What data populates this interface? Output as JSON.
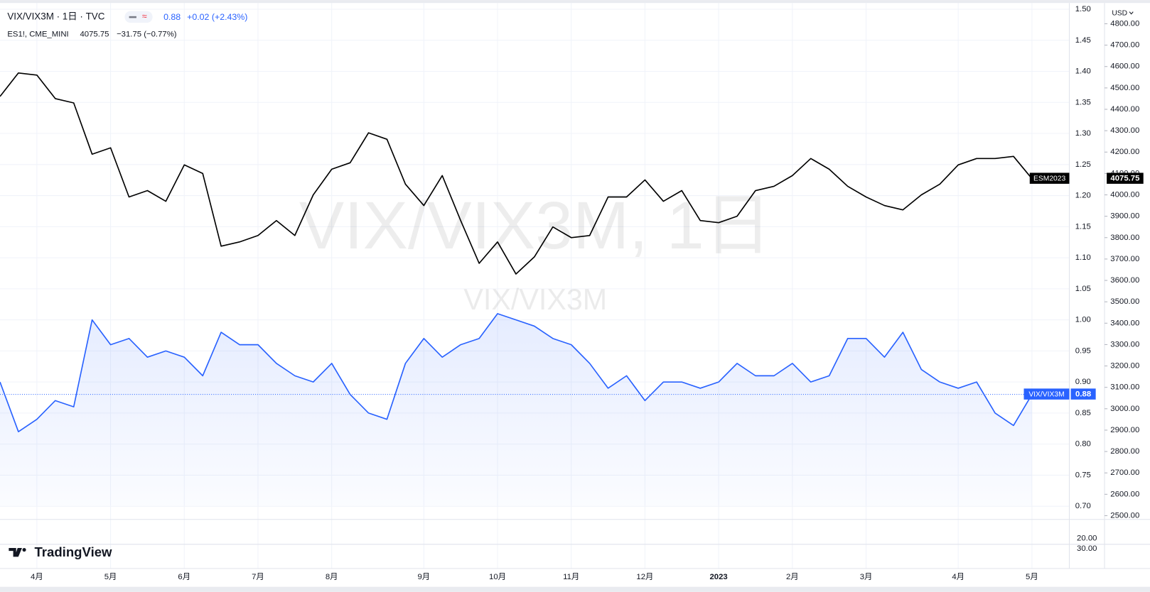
{
  "chart_data": {
    "type": "line",
    "title": "VIX/VIX3M · 1日 · TVC",
    "subtitle": "ES1!, CME_MINI",
    "header_changes": [
      "+0.02 (+2.43%)",
      "−31.75 (−0.77%)"
    ],
    "watermark": [
      "VIX/VIX3M, 1日",
      "VIX/VIX3M"
    ],
    "currency": "USD",
    "logo": "TradingView",
    "lower_pane_labels": [
      "20.00",
      "30.00"
    ],
    "categories": [
      null,
      null,
      "4月",
      null,
      null,
      null,
      "5月",
      null,
      null,
      null,
      "6月",
      null,
      null,
      null,
      "7月",
      null,
      null,
      null,
      "8月",
      null,
      null,
      null,
      null,
      "9月",
      null,
      null,
      null,
      "10月",
      null,
      null,
      null,
      "11月",
      null,
      null,
      null,
      "12月",
      null,
      null,
      null,
      "2023",
      null,
      null,
      null,
      "2月",
      null,
      null,
      null,
      "3月",
      null,
      null,
      null,
      null,
      "4月",
      null,
      null,
      null,
      "5月"
    ],
    "series": [
      {
        "name": "ESM2023",
        "color": "#000000",
        "axis": "y2",
        "values": [
          4460,
          4570,
          4560,
          4450,
          4430,
          4190,
          4220,
          3990,
          4020,
          3970,
          4140,
          4100,
          3760,
          3780,
          3810,
          3880,
          3810,
          4000,
          4120,
          4150,
          4290,
          4260,
          4050,
          3950,
          4090,
          3880,
          3680,
          3780,
          3630,
          3710,
          3850,
          3800,
          3810,
          3990,
          3990,
          4070,
          3970,
          4020,
          3880,
          3870,
          3900,
          4020,
          4040,
          4090,
          4170,
          4120,
          4040,
          3990,
          3950,
          3930,
          4000,
          4050,
          4140,
          4170,
          4170,
          4180,
          4075.75
        ]
      },
      {
        "name": "VIX/VIX3M",
        "color": "#2962ff",
        "area": true,
        "values": [
          0.9,
          0.82,
          0.84,
          0.87,
          0.86,
          1.0,
          0.96,
          0.97,
          0.94,
          0.95,
          0.94,
          0.91,
          0.98,
          0.96,
          0.96,
          0.93,
          0.91,
          0.9,
          0.93,
          0.88,
          0.85,
          0.84,
          0.93,
          0.97,
          0.94,
          0.96,
          0.97,
          1.01,
          1.0,
          0.99,
          0.97,
          0.96,
          0.93,
          0.89,
          0.91,
          0.87,
          0.9,
          0.9,
          0.89,
          0.9,
          0.93,
          0.91,
          0.91,
          0.93,
          0.9,
          0.91,
          0.97,
          0.97,
          0.94,
          0.98,
          0.92,
          0.9,
          0.89,
          0.9,
          0.85,
          0.83,
          0.88
        ]
      }
    ],
    "ylim": [
      0.68,
      1.51
    ],
    "yticks": [
      {
        "value": 0.7,
        "label": "0.70"
      },
      {
        "value": 0.75,
        "label": "0.75"
      },
      {
        "value": 0.8,
        "label": "0.80"
      },
      {
        "value": 0.85,
        "label": "0.85"
      },
      {
        "value": 0.9,
        "label": "0.90"
      },
      {
        "value": 0.95,
        "label": "0.95"
      },
      {
        "value": 1.0,
        "label": "1.00"
      },
      {
        "value": 1.05,
        "label": "1.05"
      },
      {
        "value": 1.1,
        "label": "1.10"
      },
      {
        "value": 1.15,
        "label": "1.15"
      },
      {
        "value": 1.2,
        "label": "1.20"
      },
      {
        "value": 1.25,
        "label": "1.25"
      },
      {
        "value": 1.3,
        "label": "1.30"
      },
      {
        "value": 1.35,
        "label": "1.35"
      },
      {
        "value": 1.4,
        "label": "1.40"
      },
      {
        "value": 1.45,
        "label": "1.45"
      },
      {
        "value": 1.5,
        "label": "1.50"
      }
    ],
    "y2lim": [
      2486,
      4897
    ],
    "y2ticks": [
      {
        "value": 2500,
        "label": "2500.00"
      },
      {
        "value": 2600,
        "label": "2600.00"
      },
      {
        "value": 2700,
        "label": "2700.00"
      },
      {
        "value": 2800,
        "label": "2800.00"
      },
      {
        "value": 2900,
        "label": "2900.00"
      },
      {
        "value": 3000,
        "label": "3000.00"
      },
      {
        "value": 3100,
        "label": "3100.00"
      },
      {
        "value": 3200,
        "label": "3200.00"
      },
      {
        "value": 3300,
        "label": "3300.00"
      },
      {
        "value": 3400,
        "label": "3400.00"
      },
      {
        "value": 3500,
        "label": "3500.00"
      },
      {
        "value": 3600,
        "label": "3600.00"
      },
      {
        "value": 3700,
        "label": "3700.00"
      },
      {
        "value": 3800,
        "label": "3800.00"
      },
      {
        "value": 3900,
        "label": "3900.00"
      },
      {
        "value": 4000,
        "label": "4000.00"
      },
      {
        "value": 4100,
        "label": "4100.00"
      },
      {
        "value": 4200,
        "label": "4200.00"
      },
      {
        "value": 4300,
        "label": "4300.00"
      },
      {
        "value": 4400,
        "label": "4400.00"
      },
      {
        "value": 4500,
        "label": "4500.00"
      },
      {
        "value": 4600,
        "label": "4600.00"
      },
      {
        "value": 4700,
        "label": "4700.00"
      },
      {
        "value": 4800,
        "label": "4800.00"
      }
    ],
    "grid": true
  }
}
